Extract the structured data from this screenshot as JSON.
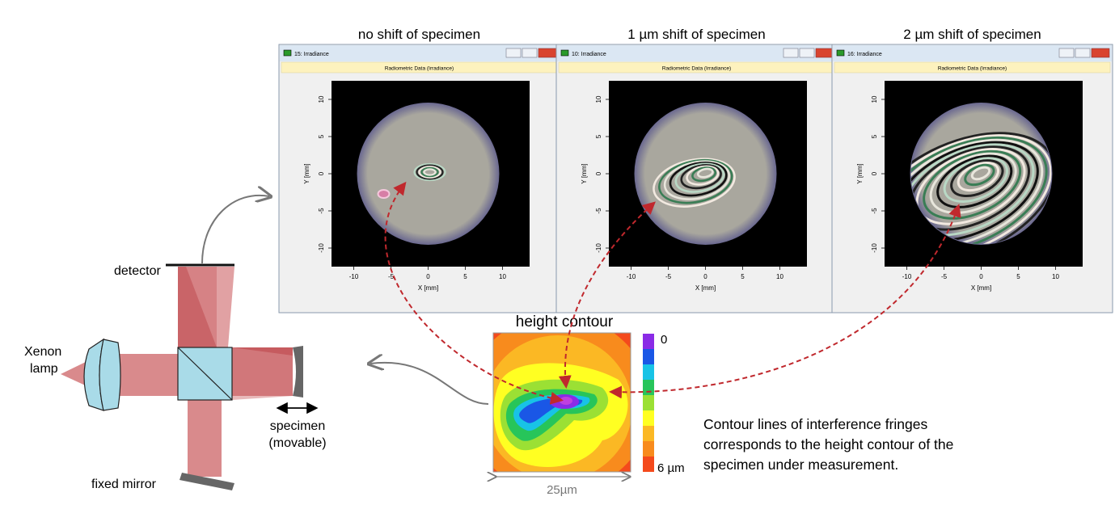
{
  "panels": [
    {
      "caption": "no shift of specimen",
      "window_title": "15: Irradiance",
      "header": "Radiometric Data (Irradiance)",
      "y_label": "Y [mm]",
      "x_label": "X [mm]",
      "xticks": [
        -10,
        -5,
        0,
        5,
        10
      ],
      "yticks": [
        10,
        5,
        0,
        -5,
        -10
      ]
    },
    {
      "caption": "1 µm shift of specimen",
      "window_title": "10: Irradiance",
      "header": "Radiometric Data (Irradiance)",
      "y_label": "Y [mm]",
      "x_label": "X [mm]",
      "xticks": [
        -10,
        -5,
        0,
        5,
        10
      ],
      "yticks": [
        10,
        5,
        0,
        -5,
        -10
      ]
    },
    {
      "caption": "2 µm shift of specimen",
      "window_title": "16: Irradiance",
      "header": "Radiometric Data (Irradiance)",
      "y_label": "Y [mm]",
      "x_label": "X [mm]",
      "xticks": [
        -10,
        -5,
        0,
        5,
        10
      ],
      "yticks": [
        10,
        5,
        0,
        -5,
        -10
      ]
    }
  ],
  "setup": {
    "detector": "detector",
    "lamp": [
      "Xenon",
      "lamp"
    ],
    "specimen": "specimen",
    "specimen_note": "(movable)",
    "mirror": "fixed mirror"
  },
  "contour": {
    "title": "height contour",
    "scale_top": "0",
    "scale_bottom": "6 µm",
    "width_label": "25µm"
  },
  "note": {
    "lines": [
      "Contour lines of interference fringes",
      "corresponds to the height contour of the",
      "specimen under measurement."
    ]
  }
}
